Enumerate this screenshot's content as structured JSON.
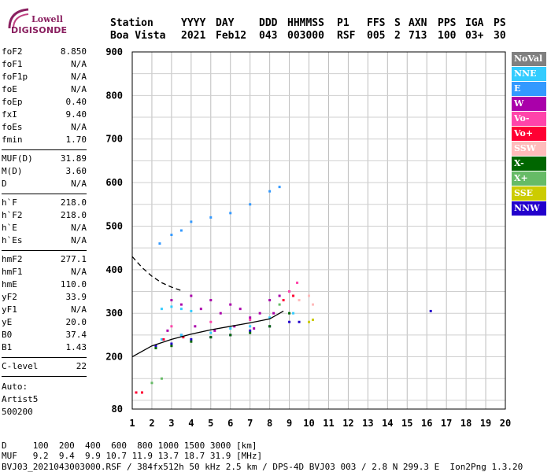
{
  "logo": {
    "line1": "Lowell",
    "line2": "DIGISONDE"
  },
  "header": {
    "row1": [
      "Station",
      "YYYY",
      "DAY",
      "DDD",
      "HHMMSS",
      "P1",
      "FFS",
      "S",
      "AXN",
      "PPS",
      "IGA",
      "PS"
    ],
    "row2": [
      "Boa Vista",
      "2021",
      "Feb12",
      "043",
      "003000",
      "RSF",
      "005",
      "2",
      "713",
      "100",
      "03+",
      "30"
    ]
  },
  "params": [
    {
      "name": "foF2",
      "value": "8.850"
    },
    {
      "name": "foF1",
      "value": "N/A"
    },
    {
      "name": "foF1p",
      "value": "N/A"
    },
    {
      "name": "foE",
      "value": "N/A"
    },
    {
      "name": "foEp",
      "value": "0.40"
    },
    {
      "name": "fxI",
      "value": "9.40"
    },
    {
      "name": "foEs",
      "value": "N/A"
    },
    {
      "name": "fmin",
      "value": "1.70"
    },
    {
      "name": "MUF(D)",
      "value": "31.89"
    },
    {
      "name": "M(D)",
      "value": "3.60"
    },
    {
      "name": "D",
      "value": "N/A"
    },
    {
      "name": "h`F",
      "value": "218.0"
    },
    {
      "name": "h`F2",
      "value": "218.0"
    },
    {
      "name": "h`E",
      "value": "N/A"
    },
    {
      "name": "h`Es",
      "value": "N/A"
    },
    {
      "name": "hmF2",
      "value": "277.1"
    },
    {
      "name": "hmF1",
      "value": "N/A"
    },
    {
      "name": "hmE",
      "value": "110.0"
    },
    {
      "name": "yF2",
      "value": "33.9"
    },
    {
      "name": "yF1",
      "value": "N/A"
    },
    {
      "name": "yE",
      "value": "20.0"
    },
    {
      "name": "B0",
      "value": "37.4"
    },
    {
      "name": "B1",
      "value": "1.43"
    },
    {
      "name": "C-level",
      "value": "22"
    }
  ],
  "extra": {
    "auto": "Auto:",
    "artist": "Artist5",
    "version": "500200"
  },
  "legend": [
    {
      "label": "NoVal",
      "color": "#808080"
    },
    {
      "label": "NNE",
      "color": "#33ccff"
    },
    {
      "label": "E",
      "color": "#3399ff"
    },
    {
      "label": "W",
      "color": "#aa00aa"
    },
    {
      "label": "Vo-",
      "color": "#ff44aa"
    },
    {
      "label": "Vo+",
      "color": "#ff0033"
    },
    {
      "label": "SSW",
      "color": "#ffbbbb"
    },
    {
      "label": "X-",
      "color": "#006600"
    },
    {
      "label": "X+",
      "color": "#66bb66"
    },
    {
      "label": "SSE",
      "color": "#cccc00"
    },
    {
      "label": "NNW",
      "color": "#2200cc"
    }
  ],
  "footer": {
    "line1": "D     100  200  400  600  800 1000 1500 3000 [km]",
    "line2": "MUF   9.2  9.4  9.9 10.7 11.9 13.7 18.7 31.9 [MHz]",
    "line3": "BVJ03_2021043003000.RSF / 384fx512h 50 kHz 2.5 km / DPS-4D BVJ03 003 / 2.8 N 299.3 E  Ion2Png 1.3.20"
  },
  "chart_data": {
    "type": "scatter",
    "xlim": [
      1,
      20
    ],
    "ylim": [
      80,
      900
    ],
    "xticks": [
      1,
      2,
      3,
      4,
      5,
      6,
      7,
      8,
      9,
      10,
      11,
      12,
      13,
      14,
      15,
      16,
      17,
      18,
      19,
      20
    ],
    "yticks": [
      80,
      200,
      300,
      400,
      500,
      600,
      700,
      800,
      900
    ],
    "grid": true,
    "legend_position": "right",
    "series": [
      {
        "name": "W",
        "color": "#aa00aa",
        "points": [
          [
            3,
            330
          ],
          [
            3.5,
            320
          ],
          [
            4,
            340
          ],
          [
            4.5,
            310
          ],
          [
            5,
            330
          ],
          [
            5.5,
            300
          ],
          [
            6,
            320
          ],
          [
            6.5,
            310
          ],
          [
            7,
            290
          ],
          [
            7.5,
            300
          ],
          [
            8,
            330
          ],
          [
            8.5,
            340
          ],
          [
            9,
            350
          ],
          [
            2.8,
            260
          ],
          [
            3.5,
            250
          ],
          [
            4.2,
            270
          ],
          [
            5.2,
            260
          ],
          [
            6.2,
            270
          ],
          [
            7.2,
            265
          ],
          [
            8.2,
            300
          ]
        ]
      },
      {
        "name": "NNE",
        "color": "#33ccff",
        "points": [
          [
            2.5,
            310
          ],
          [
            3,
            315
          ],
          [
            3.5,
            310
          ],
          [
            4,
            305
          ],
          [
            2.5,
            240
          ],
          [
            3.5,
            250
          ],
          [
            5,
            255
          ],
          [
            6,
            265
          ],
          [
            7,
            270
          ],
          [
            8,
            290
          ],
          [
            9.2,
            300
          ]
        ]
      },
      {
        "name": "NNW",
        "color": "#2200cc",
        "points": [
          [
            2.2,
            225
          ],
          [
            3,
            230
          ],
          [
            4,
            240
          ],
          [
            5,
            245
          ],
          [
            6,
            250
          ],
          [
            7,
            260
          ],
          [
            8,
            270
          ],
          [
            9,
            280
          ],
          [
            9.5,
            280
          ],
          [
            16.2,
            305
          ]
        ]
      },
      {
        "name": "X-",
        "color": "#006600",
        "points": [
          [
            2.2,
            220
          ],
          [
            3,
            225
          ],
          [
            4,
            235
          ],
          [
            5,
            245
          ],
          [
            6,
            250
          ],
          [
            7,
            255
          ],
          [
            8,
            270
          ],
          [
            9,
            300
          ]
        ]
      },
      {
        "name": "Vo+",
        "color": "#ff0033",
        "points": [
          [
            1.2,
            118
          ],
          [
            1.5,
            118
          ],
          [
            2.6,
            240
          ],
          [
            3.6,
            245
          ],
          [
            8.7,
            330
          ],
          [
            9.2,
            340
          ]
        ]
      },
      {
        "name": "Vo-",
        "color": "#ff44aa",
        "points": [
          [
            3,
            270
          ],
          [
            5,
            280
          ],
          [
            7,
            285
          ],
          [
            9,
            350
          ],
          [
            9.4,
            370
          ]
        ]
      },
      {
        "name": "SSW",
        "color": "#ffbbbb",
        "points": [
          [
            9.5,
            330
          ],
          [
            10,
            340
          ],
          [
            10.2,
            320
          ]
        ]
      },
      {
        "name": "SSE",
        "color": "#cccc00",
        "points": [
          [
            10,
            280
          ],
          [
            10.2,
            285
          ]
        ]
      },
      {
        "name": "X+",
        "color": "#66bb66",
        "points": [
          [
            2,
            140
          ],
          [
            2.5,
            150
          ],
          [
            8.5,
            320
          ]
        ]
      },
      {
        "name": "E",
        "color": "#3399ff",
        "points": [
          [
            2.4,
            460
          ],
          [
            3,
            480
          ],
          [
            3.5,
            490
          ],
          [
            4,
            510
          ],
          [
            5,
            520
          ],
          [
            6,
            530
          ],
          [
            7,
            550
          ],
          [
            8,
            580
          ],
          [
            8.5,
            590
          ]
        ]
      }
    ],
    "curves": [
      {
        "name": "profile",
        "points": [
          [
            1,
            200
          ],
          [
            2,
            225
          ],
          [
            3,
            240
          ],
          [
            4,
            252
          ],
          [
            5,
            262
          ],
          [
            6,
            270
          ],
          [
            7,
            278
          ],
          [
            8,
            287
          ],
          [
            8.7,
            305
          ]
        ]
      },
      {
        "name": "topside",
        "points": [
          [
            1,
            430
          ],
          [
            1.5,
            405
          ],
          [
            2,
            385
          ],
          [
            2.5,
            370
          ],
          [
            3,
            360
          ],
          [
            3.5,
            352
          ]
        ]
      }
    ]
  }
}
